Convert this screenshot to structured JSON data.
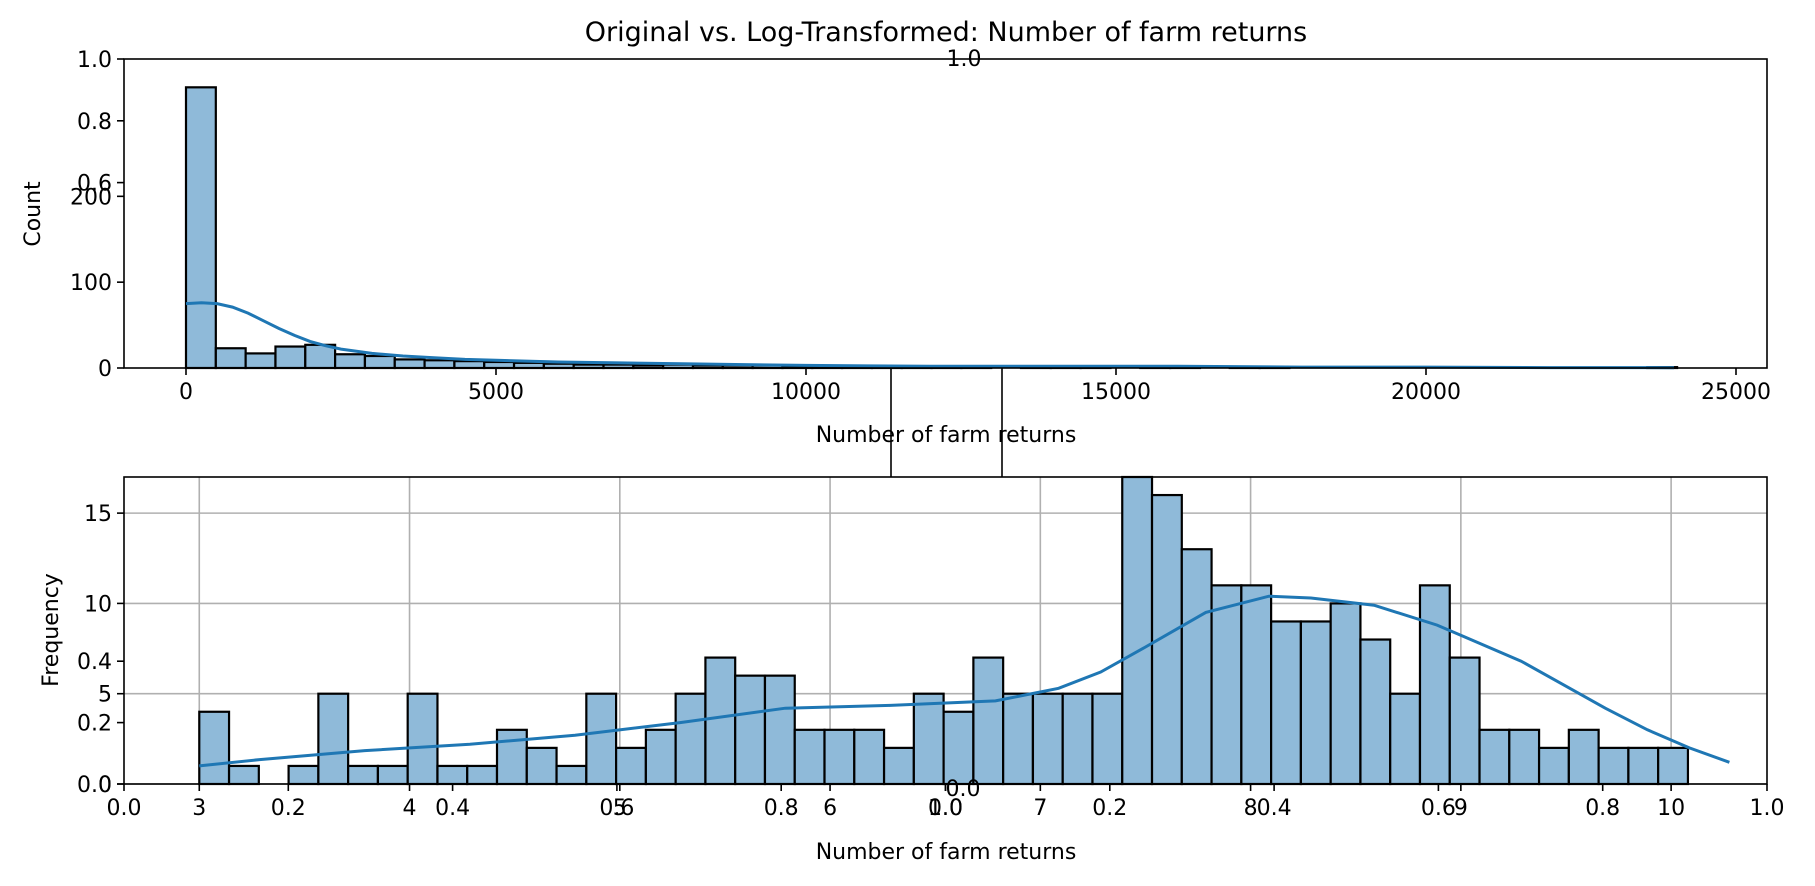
{
  "chart_data": [
    {
      "type": "bar",
      "title": "Original vs. Log-Transformed: Number of farm returns",
      "xlabel": "Number of farm returns",
      "ylabel": "Count",
      "xlim": [
        -1000,
        25500
      ],
      "ylim": [
        0,
        360
      ],
      "grid": false,
      "bin_start": 0,
      "bin_width": 481,
      "counts": [
        327,
        23,
        17,
        25,
        27,
        16,
        14,
        10,
        9,
        8,
        7,
        6,
        5,
        4,
        4,
        3,
        4,
        3,
        3,
        3,
        2,
        1,
        1,
        1,
        1,
        1,
        1,
        0,
        1,
        1,
        1,
        0,
        1,
        1,
        0,
        1,
        1,
        0,
        0,
        0,
        0,
        0,
        0,
        0,
        0,
        0,
        0,
        0,
        0,
        1
      ],
      "kde": {
        "x": [
          0,
          250,
          500,
          750,
          1000,
          1250,
          1500,
          1750,
          2000,
          2250,
          2500,
          3000,
          3500,
          4000,
          4500,
          5000,
          6000,
          7000,
          8000,
          9000,
          10000,
          11000,
          12000,
          14000,
          16000,
          18000,
          20000,
          22000,
          24000
        ],
        "y": [
          75,
          76,
          75,
          71,
          64,
          55,
          46,
          38,
          31,
          26,
          22,
          17,
          14,
          12,
          10,
          9,
          7,
          6,
          5,
          4,
          3,
          2.5,
          2,
          2,
          2,
          1,
          1,
          0.5,
          0.3
        ]
      },
      "x_ticks": [
        "0",
        "5000",
        "10000",
        "15000",
        "20000",
        "25000"
      ],
      "x_tick_values": [
        0,
        5000,
        10000,
        15000,
        20000,
        25000
      ],
      "y_ticks": [
        "0",
        "100",
        "200"
      ],
      "y_tick_values": [
        0,
        100,
        200
      ],
      "overlay_y_ticks": [
        "0.6",
        "0.8",
        "1.0"
      ],
      "overlay_top_tick": "1.0"
    },
    {
      "type": "bar",
      "xlabel": "Number of farm returns",
      "ylabel": "Frequency",
      "xlim": [
        3.355,
        11.169
      ],
      "ylim": [
        0,
        17
      ],
      "grid": true,
      "bin_start": 3.713,
      "bin_width": 0.1416,
      "counts": [
        4,
        1,
        0,
        1,
        5,
        1,
        1,
        5,
        1,
        1,
        3,
        2,
        1,
        5,
        2,
        3,
        5,
        7,
        6,
        6,
        3,
        3,
        3,
        2,
        5,
        4,
        7,
        5,
        5,
        5,
        5,
        17,
        16,
        13,
        11,
        11,
        9,
        9,
        10,
        8,
        5,
        11,
        7,
        3,
        3,
        2,
        3,
        2,
        2,
        2
      ],
      "kde": {
        "x": [
          3.713,
          4.0,
          4.5,
          5.0,
          5.5,
          6.0,
          6.5,
          7.0,
          7.5,
          7.8,
          8.0,
          8.2,
          8.5,
          8.8,
          9.0,
          9.3,
          9.6,
          9.8,
          10.0,
          10.2,
          10.4,
          10.6,
          10.8,
          10.99
        ],
        "y": [
          1.0,
          1.35,
          1.85,
          2.2,
          2.7,
          3.4,
          4.2,
          4.35,
          4.6,
          5.3,
          6.2,
          7.5,
          9.5,
          10.4,
          10.3,
          9.9,
          8.8,
          7.8,
          6.8,
          5.5,
          4.2,
          3.0,
          2.0,
          1.2
        ]
      },
      "x_ticks": [
        "3",
        "4",
        "5",
        "6",
        "7",
        "8",
        "9",
        "10"
      ],
      "x_tick_values": [
        3.713,
        4.713,
        5.713,
        6.713,
        7.713,
        8.713,
        9.713,
        10.713
      ],
      "y_ticks": [
        "0",
        "5",
        "10",
        "15"
      ],
      "y_tick_values": [
        0,
        5,
        10,
        15
      ],
      "overlay_x_ticks": [
        "0.0",
        "0.2",
        "0.4",
        "0.6",
        "0.8",
        "1.0",
        "0.0",
        "0.2",
        "0.4",
        "0.6",
        "0.8",
        "1.0"
      ],
      "overlay_y_ticks": [
        "0.0",
        "0.2",
        "0.4"
      ],
      "overlay_mid_tick": "0.0"
    }
  ],
  "colors": {
    "bar_fill": "#8fbad9",
    "bar_edge": "#000000",
    "kde_line": "#1f77b4",
    "grid": "#b0b0b0"
  }
}
